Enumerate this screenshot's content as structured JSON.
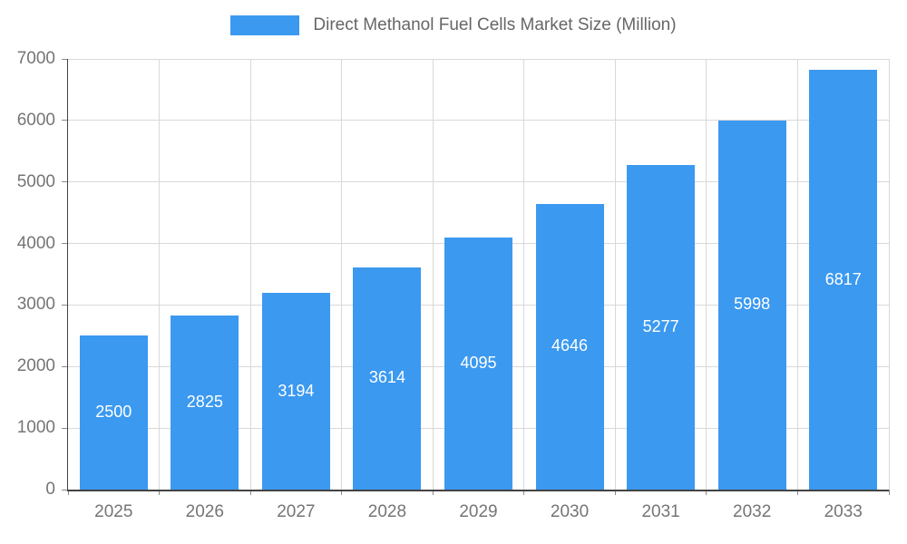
{
  "chart_data": {
    "type": "bar",
    "title": "Direct Methanol Fuel Cells Market Size (Million)",
    "categories": [
      "2025",
      "2026",
      "2027",
      "2028",
      "2029",
      "2030",
      "2031",
      "2032",
      "2033"
    ],
    "values": [
      2500,
      2825,
      3194,
      3614,
      4095,
      4646,
      5277,
      5998,
      6817
    ],
    "xlabel": "",
    "ylabel": "",
    "ylim": [
      0,
      7000
    ],
    "yticks": [
      0,
      1000,
      2000,
      3000,
      4000,
      5000,
      6000,
      7000
    ],
    "grid": true,
    "legend_position": "top",
    "bar_color": "#3B99F0",
    "value_label_color": "#ffffff",
    "axis_text_color": "#757575",
    "title_color": "#666666",
    "gridline_color": "#d9d9d9",
    "axis_line_color": "#434343"
  }
}
